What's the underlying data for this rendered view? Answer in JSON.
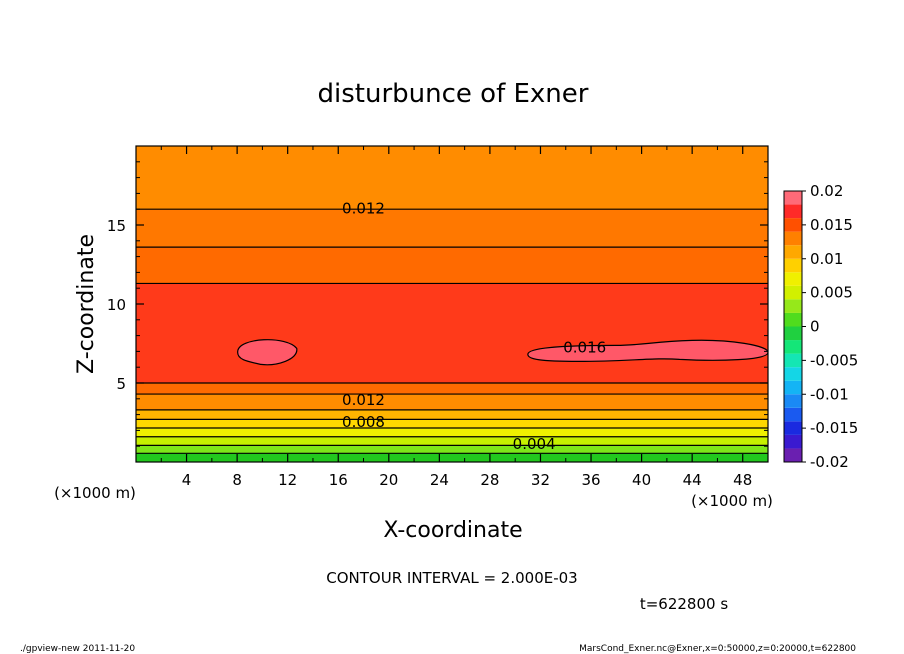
{
  "chart_data": {
    "type": "heatmap",
    "title": "disturbunce of Exner",
    "xlabel": "X-coordinate",
    "ylabel": "Z-coordinate",
    "x_unit_left": "(×1000 m)",
    "x_unit_right": "(×1000 m)",
    "xlim": [
      0,
      50
    ],
    "ylim": [
      0,
      20
    ],
    "x_ticks": [
      4,
      8,
      12,
      16,
      20,
      24,
      28,
      32,
      36,
      40,
      44,
      48
    ],
    "y_ticks": [
      5,
      10,
      15
    ],
    "contour_labels": [
      {
        "text": "0.012",
        "x": 18,
        "y": 16.1
      },
      {
        "text": "0.016",
        "x": 35.5,
        "y": 7.3
      },
      {
        "text": "0.012",
        "x": 18,
        "y": 4.0
      },
      {
        "text": "0.008",
        "x": 18,
        "y": 2.6
      },
      {
        "text": "0.004",
        "x": 31.5,
        "y": 1.2
      }
    ],
    "bands": [
      {
        "z": 0.0,
        "value": -0.0005,
        "color": "#22c81e"
      },
      {
        "z": 0.55,
        "value": 0.001,
        "color": "#7ee61a"
      },
      {
        "z": 1.05,
        "value": 0.003,
        "color": "#c6f000"
      },
      {
        "z": 1.6,
        "value": 0.005,
        "color": "#f0f000"
      },
      {
        "z": 2.15,
        "value": 0.007,
        "color": "#ffd800"
      },
      {
        "z": 2.7,
        "value": 0.009,
        "color": "#ffb400"
      },
      {
        "z": 3.3,
        "value": 0.011,
        "color": "#ff8c00"
      },
      {
        "z": 4.3,
        "value": 0.0125,
        "color": "#ff6a00"
      },
      {
        "z": 5.0,
        "value": 0.0145,
        "color": "#ff3a1a"
      },
      {
        "z": 11.3,
        "value": 0.0125,
        "color": "#ff6a00"
      },
      {
        "z": 13.6,
        "value": 0.0115,
        "color": "#ff7800"
      },
      {
        "z": 16.0,
        "value": 0.011,
        "color": "#ff8c00"
      },
      {
        "z": 20.0,
        "value": 0.01,
        "color": "#ffa000"
      }
    ],
    "max_regions": [
      {
        "x_center": 10.5,
        "z_center": 7.0,
        "value": 0.017
      },
      {
        "x_center": 40.0,
        "z_center": 7.0,
        "value": 0.017
      }
    ],
    "colorbar": {
      "tick_labels": [
        "0.02",
        "0.015",
        "0.01",
        "0.005",
        "0",
        "-0.005",
        "-0.01",
        "-0.015",
        "-0.02"
      ],
      "levels": [
        -0.02,
        -0.018,
        -0.016,
        -0.014,
        -0.012,
        -0.01,
        -0.008,
        -0.006,
        -0.004,
        -0.002,
        0,
        0.002,
        0.004,
        0.006,
        0.008,
        0.01,
        0.012,
        0.014,
        0.016,
        0.018,
        0.02
      ],
      "colors": [
        "#6a1fb0",
        "#3a1ad0",
        "#1a2ae0",
        "#1a5af0",
        "#1a8af5",
        "#14b4f5",
        "#14d6e6",
        "#14e6b4",
        "#14e678",
        "#20d040",
        "#50dc1e",
        "#96e81a",
        "#d2f000",
        "#f0f000",
        "#ffd000",
        "#ffa800",
        "#ff8000",
        "#ff5000",
        "#ff2a28",
        "#ff6a78"
      ]
    }
  },
  "annotations": {
    "contour_interval": "CONTOUR INTERVAL = 2.000E-03",
    "time": "t=622800 s",
    "footer_left": "./gpview-new 2011-11-20",
    "footer_right": "MarsCond_Exner.nc@Exner,x=0:50000,z=0:20000,t=622800"
  }
}
